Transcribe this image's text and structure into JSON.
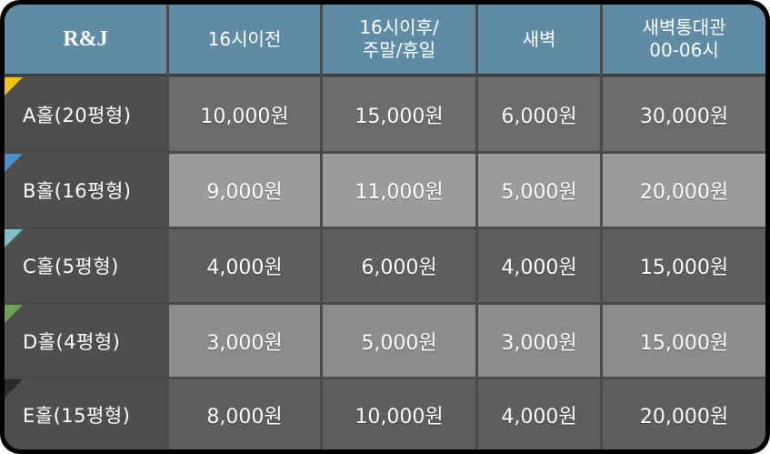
{
  "brand": "R&J",
  "columns": [
    "16시이전",
    "16시이후/\n주말/휴일",
    "새벽",
    "새벽통대관\n00-06시"
  ],
  "rows": [
    {
      "label": "A홀(20평형)",
      "marker_color": "#f2c21a",
      "values": [
        "10,000원",
        "15,000원",
        "6,000원",
        "30,000원"
      ]
    },
    {
      "label": "B홀(16평형)",
      "marker_color": "#4a8fd0",
      "values": [
        "9,000원",
        "11,000원",
        "5,000원",
        "20,000원"
      ]
    },
    {
      "label": "C홀(5평형)",
      "marker_color": "#7fc0c8",
      "values": [
        "4,000원",
        "6,000원",
        "4,000원",
        "15,000원"
      ]
    },
    {
      "label": "D홀(4평형)",
      "marker_color": "#6fa05a",
      "values": [
        "3,000원",
        "5,000원",
        "3,000원",
        "15,000원"
      ]
    },
    {
      "label": "E홀(15평형)",
      "marker_color": "#2a2a2a",
      "values": [
        "8,000원",
        "10,000원",
        "4,000원",
        "20,000원"
      ]
    }
  ]
}
